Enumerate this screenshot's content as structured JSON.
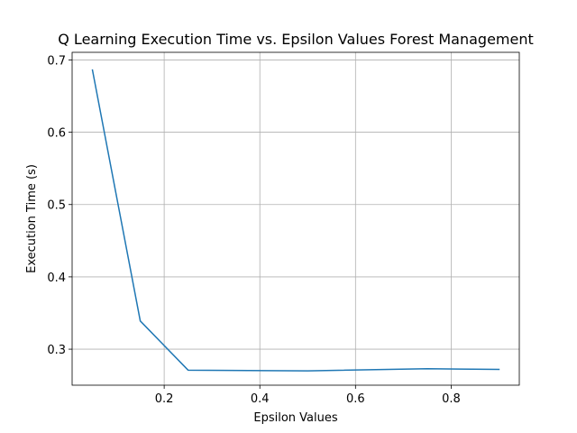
{
  "chart_data": {
    "type": "line",
    "title": "Q Learning Execution Time vs. Epsilon Values Forest Management",
    "xlabel": "Epsilon Values",
    "ylabel": "Execution Time (s)",
    "xlim": [
      0.0075,
      0.9425
    ],
    "ylim": [
      0.2502,
      0.7105
    ],
    "xticks": [
      0.2,
      0.4,
      0.6,
      0.8
    ],
    "xtick_labels": [
      "0.2",
      "0.4",
      "0.6",
      "0.8"
    ],
    "yticks": [
      0.3,
      0.4,
      0.5,
      0.6,
      0.7
    ],
    "ytick_labels": [
      "0.3",
      "0.4",
      "0.5",
      "0.6",
      "0.7"
    ],
    "grid": true,
    "series": [
      {
        "color": "#1f77b4",
        "x": [
          0.05,
          0.15,
          0.25,
          0.5,
          0.75,
          0.9
        ],
        "y": [
          0.686,
          0.339,
          0.271,
          0.27,
          0.273,
          0.272
        ]
      }
    ]
  }
}
